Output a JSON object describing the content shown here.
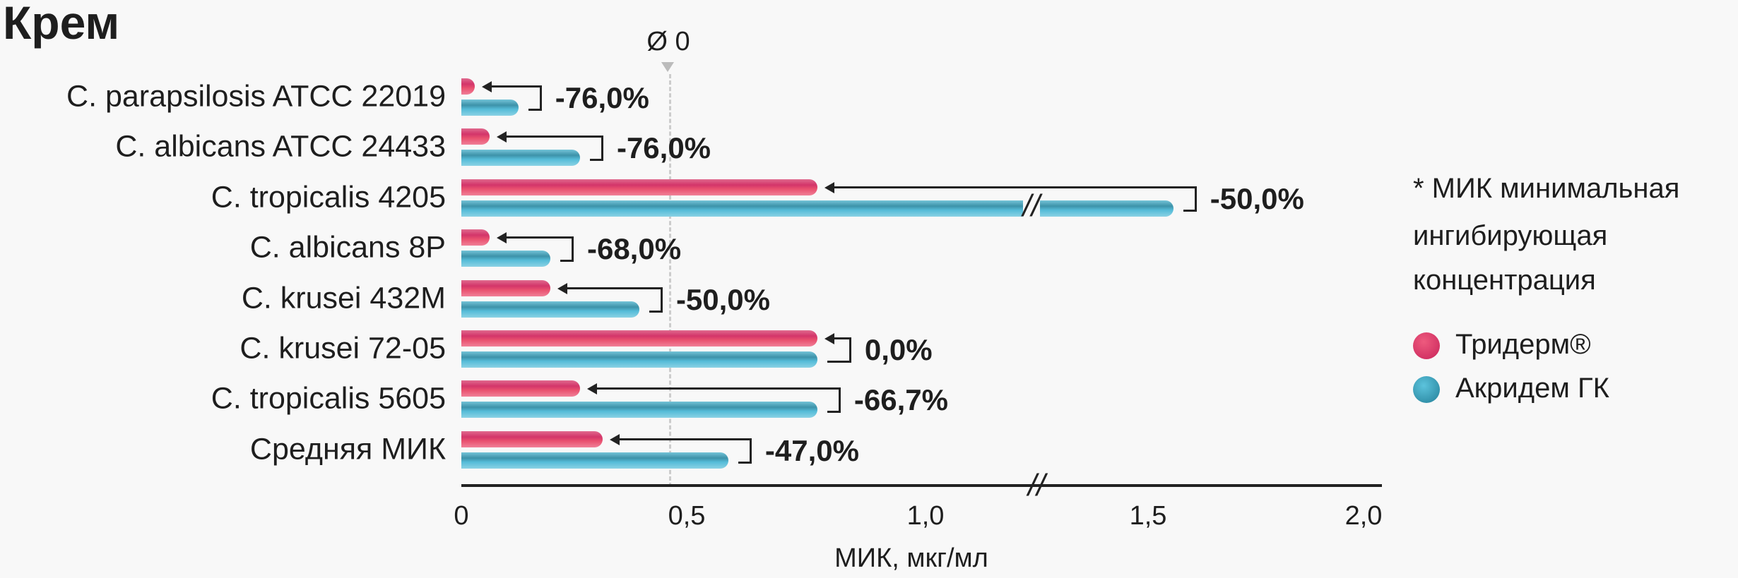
{
  "chart_data": {
    "type": "bar",
    "title": "Крем",
    "xlabel": "МИК, мкг/мл",
    "xlim": [
      0,
      2.0
    ],
    "x_ticks": [
      "0",
      "0,5",
      "1,0",
      "1,5",
      "2,0"
    ],
    "x_tick_values": [
      0,
      0.5,
      1.0,
      1.5,
      2.0
    ],
    "axis_break_between": [
      1.0,
      1.5
    ],
    "average_marker": {
      "label": "Ø 0",
      "value": 0.46
    },
    "categories": [
      "C. parapsilosis ATCC 22019",
      "C. albicans ATCC 24433",
      "C. tropicalis 4205",
      "C. albicans 8P",
      "C. krusei 432M",
      "C. krusei 72-05",
      "C. tropicalis 5605",
      "Средняя МИК"
    ],
    "series": [
      {
        "name": "Тридерм®",
        "color": "#d8356a",
        "values": [
          0.03,
          0.0625,
          0.78,
          0.0625,
          0.195,
          0.78,
          0.26,
          0.31
        ]
      },
      {
        "name": "Акридем ГК",
        "color": "#3a96ae",
        "values": [
          0.125,
          0.26,
          1.56,
          0.195,
          0.39,
          0.78,
          0.78,
          0.585
        ]
      }
    ],
    "differences": [
      "-76,0%",
      "-76,0%",
      "-50,0%",
      "-68,0%",
      "-50,0%",
      "0,0%",
      "-66,7%",
      "-47,0%"
    ],
    "legend_placement": "right",
    "note": [
      "* МИК минимальная",
      "ингибирующая",
      "концентрация"
    ]
  }
}
